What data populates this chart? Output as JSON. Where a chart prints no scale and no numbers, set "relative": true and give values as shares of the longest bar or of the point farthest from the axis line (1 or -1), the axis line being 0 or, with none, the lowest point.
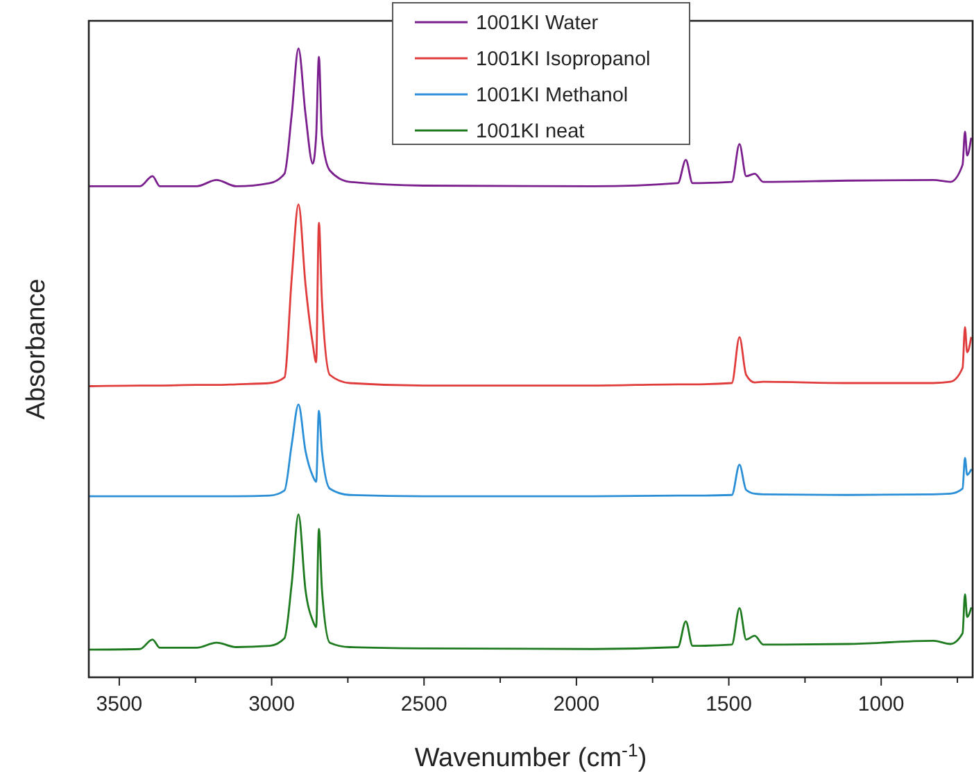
{
  "chart_data": {
    "type": "line",
    "relative": true,
    "xlabel": "Wavenumber (cm$^{-1}$)",
    "ylabel": "Absorbance",
    "legend": "top",
    "xlim": [
      3600,
      700
    ],
    "xticks": [
      3500,
      {
        "value": 3250,
        "label": null
      },
      3000,
      {
        "value": 2750,
        "label": null
      },
      2500,
      {
        "value": 2250,
        "label": null
      },
      2000,
      {
        "value": 1750,
        "label": null
      },
      1500,
      {
        "value": 1250,
        "label": null
      },
      1000,
      {
        "value": 750,
        "label": null
      }
    ],
    "x": [
      3600,
      3432,
      3391,
      3367,
      3246,
      3181,
      3116,
      3006,
      2958,
      2934,
      2912,
      2889,
      2865,
      2854,
      2845,
      2835,
      2809,
      2744,
      2502,
      1944,
      1667,
      1641,
      1619,
      1490,
      1465,
      1443,
      1415,
      1387,
      1109,
      829,
      773,
      733,
      725,
      718,
      705
    ],
    "series": [
      {
        "name": "1001KI Water",
        "color": "#7b1f8e",
        "values": [
          0.781,
          0.781,
          0.797,
          0.781,
          0.781,
          0.791,
          0.781,
          0.786,
          0.801,
          0.896,
          1.0,
          0.896,
          0.817,
          0.861,
          0.987,
          0.861,
          0.806,
          0.788,
          0.782,
          0.781,
          0.786,
          0.823,
          0.786,
          0.788,
          0.848,
          0.797,
          0.801,
          0.788,
          0.79,
          0.791,
          0.788,
          0.815,
          0.868,
          0.83,
          0.857
        ]
      },
      {
        "name": "1001KI Isopropanol",
        "color": "#e03c3c",
        "values": [
          0.463,
          0.464,
          0.464,
          0.464,
          0.465,
          0.465,
          0.466,
          0.468,
          0.477,
          0.636,
          0.752,
          0.625,
          0.53,
          0.501,
          0.723,
          0.6,
          0.481,
          0.468,
          0.464,
          0.464,
          0.466,
          0.466,
          0.466,
          0.468,
          0.541,
          0.481,
          0.469,
          0.47,
          0.468,
          0.468,
          0.47,
          0.492,
          0.557,
          0.517,
          0.54
        ]
      },
      {
        "name": "1001KI Methanol",
        "color": "#2a8fd6",
        "values": [
          0.288,
          0.288,
          0.288,
          0.288,
          0.288,
          0.288,
          0.288,
          0.289,
          0.297,
          0.371,
          0.434,
          0.36,
          0.32,
          0.311,
          0.424,
          0.36,
          0.3,
          0.29,
          0.288,
          0.288,
          0.289,
          0.289,
          0.289,
          0.29,
          0.338,
          0.298,
          0.292,
          0.291,
          0.29,
          0.291,
          0.292,
          0.3,
          0.349,
          0.322,
          0.33
        ]
      },
      {
        "name": "1001KI neat",
        "color": "#1e7a1e",
        "values": [
          0.044,
          0.045,
          0.06,
          0.047,
          0.047,
          0.055,
          0.048,
          0.05,
          0.062,
          0.15,
          0.259,
          0.139,
          0.09,
          0.08,
          0.236,
          0.14,
          0.055,
          0.048,
          0.046,
          0.045,
          0.048,
          0.089,
          0.05,
          0.052,
          0.11,
          0.06,
          0.066,
          0.052,
          0.053,
          0.058,
          0.053,
          0.07,
          0.132,
          0.096,
          0.11
        ]
      }
    ]
  }
}
